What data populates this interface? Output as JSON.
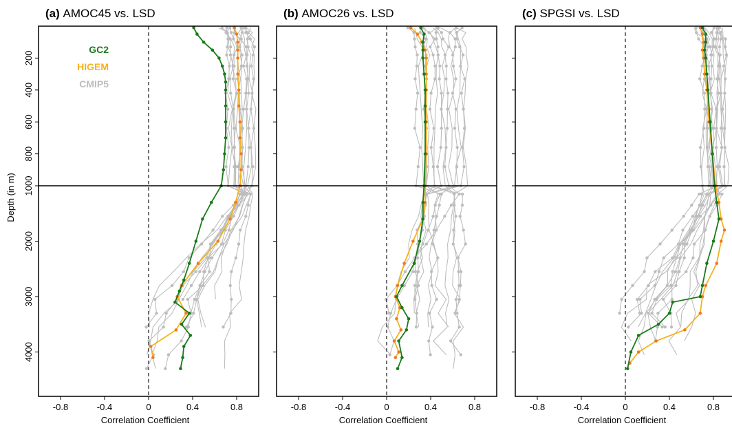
{
  "chart_data": {
    "type": "line",
    "ylabel": "Depth (in m)",
    "xlabel": "Correlation Coefficient",
    "xlim": [
      -1.0,
      1.0
    ],
    "x_ticks": [
      "-0.8",
      "-0.4",
      "0",
      "0.4",
      "0.8"
    ],
    "ylim_upper": [
      0,
      1000
    ],
    "ylim_lower": [
      1000,
      4800
    ],
    "y_ticks_upper": [
      "200",
      "400",
      "600",
      "800",
      "1000"
    ],
    "y_ticks_lower": [
      "2000",
      "3000",
      "4000"
    ],
    "colors": {
      "GC2": "#1a7a1a",
      "HIGEM": "#f5b21a",
      "HIGEM_marker": "#f07a20",
      "CMIP5": "#bdbdbd"
    },
    "legend": {
      "position": "top-left",
      "entries": [
        "GC2",
        "HIGEM",
        "CMIP5"
      ]
    },
    "panels": [
      {
        "tag": "(a)",
        "title": "AMOC45 vs. LSD",
        "series": [
          {
            "name": "GC2",
            "depth": [
              10,
              50,
              100,
              150,
              200,
              250,
              300,
              350,
              400,
              500,
              600,
              700,
              800,
              900,
              1000,
              1300,
              1600,
              2000,
              2400,
              2700,
              2900,
              3100,
              3300,
              3500,
              3700,
              3900,
              4100,
              4300
            ],
            "value": [
              0.41,
              0.44,
              0.5,
              0.58,
              0.64,
              0.67,
              0.69,
              0.7,
              0.7,
              0.7,
              0.7,
              0.7,
              0.69,
              0.68,
              0.66,
              0.57,
              0.49,
              0.43,
              0.37,
              0.32,
              0.28,
              0.24,
              0.37,
              0.3,
              0.38,
              0.32,
              0.31,
              0.29
            ]
          },
          {
            "name": "HIGEM",
            "depth": [
              10,
              50,
              100,
              150,
              200,
              300,
              400,
              500,
              600,
              700,
              800,
              900,
              1000,
              1300,
              1600,
              2000,
              2400,
              2800,
              3000,
              3300,
              3600,
              3900,
              4100
            ],
            "value": [
              0.78,
              0.8,
              0.81,
              0.81,
              0.81,
              0.81,
              0.82,
              0.82,
              0.83,
              0.83,
              0.84,
              0.84,
              0.83,
              0.79,
              0.74,
              0.63,
              0.45,
              0.3,
              0.26,
              0.34,
              0.25,
              0.02,
              0.04
            ]
          }
        ]
      },
      {
        "tag": "(b)",
        "title": "AMOC26 vs. LSD",
        "series": [
          {
            "name": "GC2",
            "depth": [
              10,
              50,
              100,
              150,
              200,
              300,
              400,
              500,
              600,
              800,
              1000,
              1300,
              1600,
              2000,
              2400,
              2800,
              3000,
              3200,
              3400,
              3600,
              3800,
              4100,
              4300
            ],
            "value": [
              0.31,
              0.34,
              0.33,
              0.33,
              0.33,
              0.34,
              0.35,
              0.35,
              0.35,
              0.35,
              0.34,
              0.33,
              0.33,
              0.3,
              0.25,
              0.14,
              0.09,
              0.14,
              0.2,
              0.18,
              0.11,
              0.14,
              0.1
            ]
          },
          {
            "name": "HIGEM",
            "depth": [
              10,
              50,
              100,
              150,
              200,
              300,
              400,
              600,
              800,
              1000,
              1300,
              1600,
              2000,
              2400,
              2800,
              3000,
              3200,
              3400,
              3600,
              3800,
              4000,
              4100
            ],
            "value": [
              0.22,
              0.28,
              0.32,
              0.35,
              0.36,
              0.36,
              0.36,
              0.36,
              0.36,
              0.35,
              0.35,
              0.33,
              0.24,
              0.16,
              0.1,
              0.08,
              0.12,
              0.09,
              0.13,
              0.07,
              0.11,
              0.08
            ]
          }
        ]
      },
      {
        "tag": "(c)",
        "title": "SPGSI vs. LSD",
        "series": [
          {
            "name": "GC2",
            "depth": [
              10,
              50,
              100,
              150,
              200,
              300,
              400,
              600,
              800,
              1000,
              1300,
              1600,
              2000,
              2400,
              2800,
              3000,
              3100,
              3300,
              3500,
              3700,
              4000,
              4300
            ],
            "value": [
              0.7,
              0.73,
              0.73,
              0.72,
              0.73,
              0.74,
              0.75,
              0.77,
              0.79,
              0.81,
              0.83,
              0.85,
              0.8,
              0.74,
              0.7,
              0.68,
              0.43,
              0.4,
              0.3,
              0.12,
              0.05,
              0.02
            ]
          },
          {
            "name": "HIGEM",
            "depth": [
              10,
              50,
              100,
              150,
              200,
              300,
              400,
              600,
              800,
              1000,
              1300,
              1600,
              1800,
              2000,
              2400,
              2800,
              3000,
              3300,
              3600,
              3800,
              4000,
              4200
            ],
            "value": [
              0.68,
              0.7,
              0.71,
              0.7,
              0.71,
              0.72,
              0.74,
              0.76,
              0.79,
              0.82,
              0.85,
              0.87,
              0.9,
              0.87,
              0.83,
              0.73,
              0.7,
              0.68,
              0.54,
              0.28,
              0.12,
              0.04
            ]
          }
        ]
      }
    ]
  }
}
